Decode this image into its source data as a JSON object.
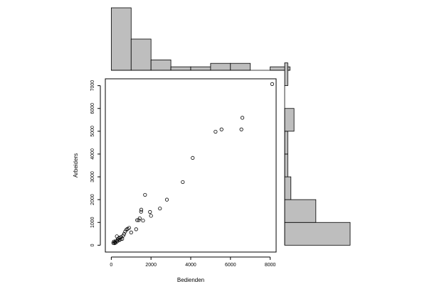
{
  "chart_data": [
    {
      "type": "scatter",
      "xlabel": "Bedienden",
      "ylabel": "Arbeiders",
      "xlim": [
        -300,
        8300
      ],
      "ylim": [
        -300,
        7300
      ],
      "xticks": [
        0,
        2000,
        4000,
        6000,
        8000
      ],
      "yticks": [
        0,
        1000,
        2000,
        3000,
        4000,
        5000,
        6000,
        7000
      ],
      "grid": false,
      "points": [
        {
          "x": 100,
          "y": 100
        },
        {
          "x": 130,
          "y": 160
        },
        {
          "x": 160,
          "y": 90
        },
        {
          "x": 190,
          "y": 140
        },
        {
          "x": 220,
          "y": 110
        },
        {
          "x": 250,
          "y": 200
        },
        {
          "x": 280,
          "y": 390
        },
        {
          "x": 300,
          "y": 170
        },
        {
          "x": 330,
          "y": 250
        },
        {
          "x": 370,
          "y": 300
        },
        {
          "x": 400,
          "y": 220
        },
        {
          "x": 430,
          "y": 330
        },
        {
          "x": 460,
          "y": 260
        },
        {
          "x": 500,
          "y": 360
        },
        {
          "x": 550,
          "y": 280
        },
        {
          "x": 600,
          "y": 420
        },
        {
          "x": 650,
          "y": 500
        },
        {
          "x": 700,
          "y": 600
        },
        {
          "x": 760,
          "y": 680
        },
        {
          "x": 820,
          "y": 720
        },
        {
          "x": 900,
          "y": 760
        },
        {
          "x": 1000,
          "y": 560
        },
        {
          "x": 1250,
          "y": 700
        },
        {
          "x": 1300,
          "y": 1100
        },
        {
          "x": 1380,
          "y": 1100
        },
        {
          "x": 1430,
          "y": 1180
        },
        {
          "x": 1500,
          "y": 1470
        },
        {
          "x": 1510,
          "y": 1560
        },
        {
          "x": 1600,
          "y": 1080
        },
        {
          "x": 1700,
          "y": 2210
        },
        {
          "x": 1950,
          "y": 1460
        },
        {
          "x": 2000,
          "y": 1290
        },
        {
          "x": 2450,
          "y": 1610
        },
        {
          "x": 2800,
          "y": 2000
        },
        {
          "x": 3600,
          "y": 2770
        },
        {
          "x": 4100,
          "y": 3830
        },
        {
          "x": 5250,
          "y": 4980
        },
        {
          "x": 5550,
          "y": 5080
        },
        {
          "x": 6550,
          "y": 5080
        },
        {
          "x": 6600,
          "y": 5590
        },
        {
          "x": 8100,
          "y": 7070
        }
      ]
    },
    {
      "type": "bar",
      "orientation": "vertical",
      "variable": "Bedienden",
      "bin_edges": [
        0,
        1000,
        2000,
        3000,
        4000,
        5000,
        6000,
        7000,
        8000,
        9000
      ],
      "counts": [
        18,
        9,
        3,
        1,
        1,
        2,
        2,
        0,
        1
      ]
    },
    {
      "type": "bar",
      "orientation": "horizontal",
      "variable": "Arbeiders",
      "bin_edges": [
        0,
        1000,
        2000,
        3000,
        4000,
        5000,
        6000,
        7000
      ],
      "counts": [
        21,
        10,
        2,
        1,
        1,
        3,
        0,
        1
      ],
      "note_bins": "counts aligned to bins 0-1000 through 7000-8000 (8 bins)"
    }
  ]
}
